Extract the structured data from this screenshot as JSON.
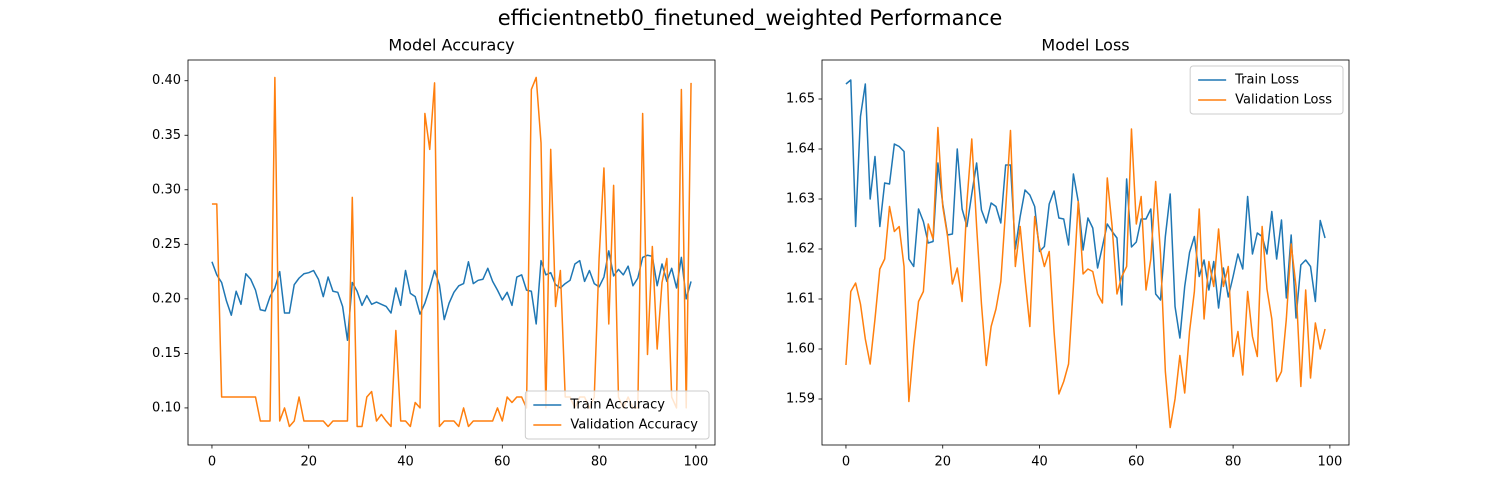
{
  "title": "efficientnetb0_finetuned_weighted Performance",
  "chart_data": [
    {
      "type": "line",
      "title": "Model Accuracy",
      "legend": "lower right",
      "grid": false,
      "xlim": [
        -4.95,
        103.95
      ],
      "ylim": [
        0.066,
        0.419
      ],
      "xticks": [
        0,
        20,
        40,
        60,
        80,
        100
      ],
      "yticks": [
        {
          "value": 0.1,
          "label": "0.10"
        },
        0.15,
        {
          "value": 0.2,
          "label": "0.20"
        },
        0.25,
        {
          "value": 0.3,
          "label": "0.30"
        },
        0.35,
        {
          "value": 0.4,
          "label": "0.40"
        }
      ],
      "x": [
        0,
        1,
        2,
        3,
        4,
        5,
        6,
        7,
        8,
        9,
        10,
        11,
        12,
        13,
        14,
        15,
        16,
        17,
        18,
        19,
        20,
        21,
        22,
        23,
        24,
        25,
        26,
        27,
        28,
        29,
        30,
        31,
        32,
        33,
        34,
        35,
        36,
        37,
        38,
        39,
        40,
        41,
        42,
        43,
        44,
        45,
        46,
        47,
        48,
        49,
        50,
        51,
        52,
        53,
        54,
        55,
        56,
        57,
        58,
        59,
        60,
        61,
        62,
        63,
        64,
        65,
        66,
        67,
        68,
        69,
        70,
        71,
        72,
        73,
        74,
        75,
        76,
        77,
        78,
        79,
        80,
        81,
        82,
        83,
        84,
        85,
        86,
        87,
        88,
        89,
        90,
        91,
        92,
        93,
        94,
        95,
        96,
        97,
        98,
        99
      ],
      "series": [
        {
          "name": "Train Accuracy",
          "color": "#1f77b4",
          "values": [
            0.234,
            0.222,
            0.215,
            0.198,
            0.185,
            0.207,
            0.195,
            0.223,
            0.218,
            0.208,
            0.19,
            0.189,
            0.202,
            0.21,
            0.225,
            0.187,
            0.187,
            0.213,
            0.219,
            0.223,
            0.224,
            0.226,
            0.218,
            0.202,
            0.22,
            0.207,
            0.206,
            0.193,
            0.162,
            0.215,
            0.207,
            0.194,
            0.203,
            0.195,
            0.197,
            0.195,
            0.193,
            0.187,
            0.21,
            0.194,
            0.226,
            0.205,
            0.202,
            0.186,
            0.196,
            0.21,
            0.226,
            0.213,
            0.181,
            0.196,
            0.206,
            0.212,
            0.214,
            0.234,
            0.214,
            0.217,
            0.218,
            0.228,
            0.216,
            0.208,
            0.199,
            0.206,
            0.194,
            0.22,
            0.222,
            0.208,
            0.207,
            0.177,
            0.235,
            0.222,
            0.224,
            0.213,
            0.21,
            0.214,
            0.217,
            0.232,
            0.235,
            0.216,
            0.226,
            0.214,
            0.211,
            0.22,
            0.244,
            0.221,
            0.227,
            0.222,
            0.23,
            0.212,
            0.219,
            0.238,
            0.24,
            0.239,
            0.212,
            0.232,
            0.216,
            0.228,
            0.21,
            0.238,
            0.2,
            0.216
          ]
        },
        {
          "name": "Validation Accuracy",
          "color": "#ff7f0e",
          "values": [
            0.287,
            0.287,
            0.11,
            0.11,
            0.11,
            0.11,
            0.11,
            0.11,
            0.11,
            0.11,
            0.088,
            0.088,
            0.088,
            0.403,
            0.088,
            0.1,
            0.083,
            0.088,
            0.11,
            0.088,
            0.088,
            0.088,
            0.088,
            0.088,
            0.083,
            0.088,
            0.088,
            0.088,
            0.088,
            0.293,
            0.083,
            0.083,
            0.11,
            0.115,
            0.088,
            0.094,
            0.088,
            0.083,
            0.171,
            0.088,
            0.088,
            0.083,
            0.105,
            0.1,
            0.37,
            0.337,
            0.398,
            0.083,
            0.088,
            0.088,
            0.088,
            0.083,
            0.1,
            0.083,
            0.088,
            0.088,
            0.088,
            0.088,
            0.088,
            0.1,
            0.088,
            0.11,
            0.105,
            0.11,
            0.11,
            0.1,
            0.392,
            0.403,
            0.343,
            0.1,
            0.337,
            0.193,
            0.226,
            0.11,
            0.11,
            0.1,
            0.11,
            0.11,
            0.1,
            0.11,
            0.237,
            0.32,
            0.177,
            0.304,
            0.11,
            0.1,
            0.11,
            0.1,
            0.1,
            0.37,
            0.149,
            0.248,
            0.154,
            0.215,
            0.237,
            0.11,
            0.1,
            0.392,
            0.1,
            0.398
          ]
        }
      ]
    },
    {
      "type": "line",
      "title": "Model Loss",
      "legend": "upper right",
      "grid": false,
      "xlim": [
        -4.95,
        103.95
      ],
      "ylim": [
        1.5808,
        1.6578
      ],
      "xticks": [
        0,
        20,
        40,
        60,
        80,
        100
      ],
      "yticks": [
        1.59,
        {
          "value": 1.6,
          "label": "1.60"
        },
        1.61,
        1.62,
        1.63,
        1.64,
        1.65
      ],
      "x": [
        0,
        1,
        2,
        3,
        4,
        5,
        6,
        7,
        8,
        9,
        10,
        11,
        12,
        13,
        14,
        15,
        16,
        17,
        18,
        19,
        20,
        21,
        22,
        23,
        24,
        25,
        26,
        27,
        28,
        29,
        30,
        31,
        32,
        33,
        34,
        35,
        36,
        37,
        38,
        39,
        40,
        41,
        42,
        43,
        44,
        45,
        46,
        47,
        48,
        49,
        50,
        51,
        52,
        53,
        54,
        55,
        56,
        57,
        58,
        59,
        60,
        61,
        62,
        63,
        64,
        65,
        66,
        67,
        68,
        69,
        70,
        71,
        72,
        73,
        74,
        75,
        76,
        77,
        78,
        79,
        80,
        81,
        82,
        83,
        84,
        85,
        86,
        87,
        88,
        89,
        90,
        91,
        92,
        93,
        94,
        95,
        96,
        97,
        98,
        99
      ],
      "series": [
        {
          "name": "Train Loss",
          "color": "#1f77b4",
          "values": [
            1.653,
            1.6538,
            1.6245,
            1.6465,
            1.653,
            1.63,
            1.6385,
            1.6245,
            1.6332,
            1.633,
            1.641,
            1.6405,
            1.6395,
            1.618,
            1.6165,
            1.628,
            1.6255,
            1.6212,
            1.6215,
            1.6372,
            1.629,
            1.6228,
            1.623,
            1.64,
            1.628,
            1.6245,
            1.631,
            1.6372,
            1.6278,
            1.6252,
            1.6292,
            1.6285,
            1.6252,
            1.6368,
            1.6368,
            1.62,
            1.6265,
            1.6318,
            1.6308,
            1.6285,
            1.6195,
            1.6205,
            1.629,
            1.6316,
            1.6262,
            1.626,
            1.6208,
            1.635,
            1.6295,
            1.6198,
            1.6262,
            1.6242,
            1.6162,
            1.6205,
            1.625,
            1.6235,
            1.6222,
            1.6088,
            1.634,
            1.6204,
            1.6214,
            1.626,
            1.626,
            1.628,
            1.611,
            1.6098,
            1.6225,
            1.631,
            1.6085,
            1.6022,
            1.6125,
            1.6193,
            1.6225,
            1.6145,
            1.6178,
            1.6118,
            1.6175,
            1.6082,
            1.6162,
            1.6104,
            1.6145,
            1.619,
            1.616,
            1.6305,
            1.619,
            1.6232,
            1.6225,
            1.619,
            1.6275,
            1.618,
            1.6258,
            1.6102,
            1.6228,
            1.6062,
            1.6168,
            1.6178,
            1.6165,
            1.6095,
            1.6257,
            1.6222
          ]
        },
        {
          "name": "Validation Loss",
          "color": "#ff7f0e",
          "values": [
            1.5968,
            1.6115,
            1.6132,
            1.609,
            1.602,
            1.597,
            1.606,
            1.616,
            1.618,
            1.6285,
            1.6235,
            1.6245,
            1.6165,
            1.5895,
            1.6005,
            1.6095,
            1.6115,
            1.625,
            1.622,
            1.6443,
            1.6285,
            1.6225,
            1.613,
            1.6162,
            1.6095,
            1.6295,
            1.642,
            1.6245,
            1.609,
            1.5967,
            1.6045,
            1.608,
            1.6135,
            1.628,
            1.6437,
            1.6165,
            1.6245,
            1.614,
            1.6045,
            1.6265,
            1.6205,
            1.6165,
            1.6195,
            1.6035,
            1.591,
            1.5935,
            1.597,
            1.6125,
            1.6295,
            1.615,
            1.616,
            1.6155,
            1.611,
            1.6092,
            1.6342,
            1.6245,
            1.611,
            1.6145,
            1.6165,
            1.644,
            1.625,
            1.6305,
            1.6118,
            1.618,
            1.6335,
            1.619,
            1.5955,
            1.5843,
            1.59,
            1.5987,
            1.5912,
            1.6035,
            1.6115,
            1.628,
            1.606,
            1.6175,
            1.6125,
            1.624,
            1.6125,
            1.6165,
            1.5985,
            1.6035,
            1.5948,
            1.6115,
            1.6025,
            1.5985,
            1.6245,
            1.612,
            1.606,
            1.5935,
            1.5955,
            1.606,
            1.621,
            1.6125,
            1.5925,
            1.6118,
            1.5942,
            1.6052,
            1.6,
            1.604
          ]
        }
      ]
    }
  ]
}
